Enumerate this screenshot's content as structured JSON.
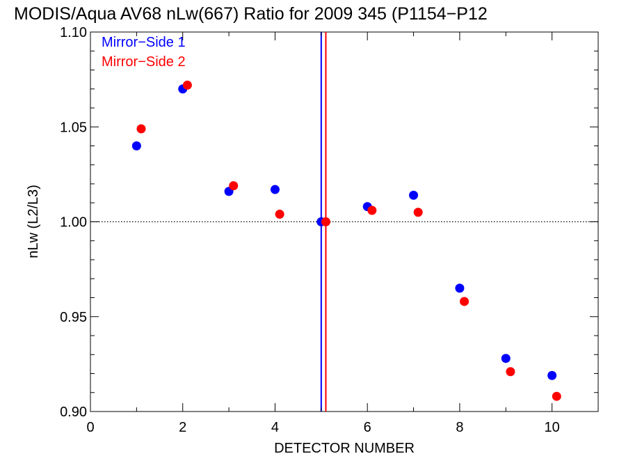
{
  "chart_data": {
    "type": "scatter",
    "title": "MODIS/Aqua AV68 nLw(667) Ratio for 2009 345 (P1154−P12",
    "xlabel": "DETECTOR NUMBER",
    "ylabel": "nLw (L2/L3)",
    "xlim": [
      0,
      11
    ],
    "ylim": [
      0.9,
      1.1
    ],
    "x_ticks": [
      0,
      2,
      4,
      6,
      8,
      10
    ],
    "x_tick_labels": [
      "0",
      "2",
      "4",
      "6",
      "8",
      "10"
    ],
    "y_ticks": [
      0.9,
      0.95,
      1.0,
      1.05,
      1.1
    ],
    "y_tick_labels": [
      "0.90",
      "0.95",
      "1.00",
      "1.05",
      "1.10"
    ],
    "grid": false,
    "legend_position": "top-left",
    "reference_line": {
      "y": 1.0,
      "style": "dotted"
    },
    "series": [
      {
        "name": "Mirror−Side 1",
        "color": "#0000ff",
        "x": [
          1,
          2,
          3,
          4,
          5,
          6,
          7,
          8,
          9,
          10
        ],
        "y": [
          1.04,
          1.07,
          1.016,
          1.017,
          1.0,
          1.008,
          1.014,
          0.965,
          0.928,
          0.919
        ],
        "vline_x": 5.0
      },
      {
        "name": "Mirror−Side 2",
        "color": "#ff0000",
        "x": [
          1.1,
          2.1,
          3.1,
          4.1,
          5.1,
          6.1,
          7.1,
          8.1,
          9.1,
          10.1
        ],
        "y": [
          1.049,
          1.072,
          1.019,
          1.004,
          1.0,
          1.006,
          1.005,
          0.958,
          0.921,
          0.908
        ],
        "vline_x": 5.1
      }
    ]
  }
}
